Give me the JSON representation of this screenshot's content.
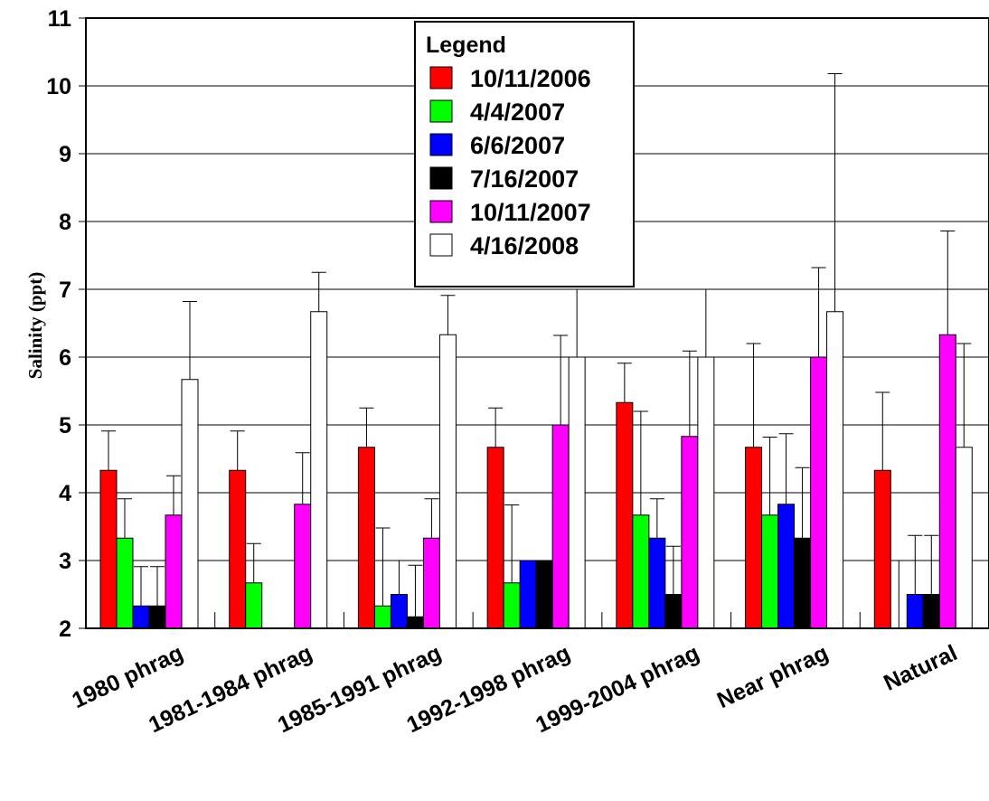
{
  "chart_data": {
    "type": "bar",
    "ylabel": "Salinity (ppt)",
    "xlabel": "",
    "ylim": [
      2,
      11
    ],
    "yticks": [
      "2",
      "3",
      "4",
      "5",
      "6",
      "7",
      "8",
      "9",
      "10",
      "11"
    ],
    "grid": true,
    "legend_title": "Legend",
    "legend_position": "top-center",
    "categories": [
      "1980 phrag",
      "1981-1984 phrag",
      "1985-1991 phrag",
      "1992-1998 phrag",
      "1999-2004 phrag",
      "Near phrag",
      "Natural"
    ],
    "series": [
      {
        "name": "10/11/2006",
        "color": "#ff0000",
        "values": [
          4.33,
          4.33,
          4.67,
          4.67,
          5.33,
          4.67,
          4.33
        ],
        "errors": [
          0.58,
          0.58,
          0.58,
          0.58,
          0.58,
          1.53,
          1.15
        ]
      },
      {
        "name": "4/4/2007",
        "color": "#00ff00",
        "values": [
          3.33,
          2.67,
          2.33,
          2.67,
          3.67,
          3.67,
          2.0
        ],
        "errors": [
          0.58,
          0.58,
          1.15,
          1.15,
          1.53,
          1.15,
          1.0
        ]
      },
      {
        "name": "6/6/2007",
        "color": "#0000ff",
        "values": [
          2.33,
          null,
          2.5,
          3.0,
          3.33,
          3.83,
          2.5
        ],
        "errors": [
          0.58,
          null,
          0.5,
          0,
          0.58,
          1.04,
          0.87
        ]
      },
      {
        "name": "7/16/2007",
        "color": "#000000",
        "values": [
          2.33,
          null,
          2.17,
          3.0,
          2.5,
          3.33,
          2.5
        ],
        "errors": [
          0.58,
          null,
          0.76,
          0,
          0.71,
          1.04,
          0.87
        ]
      },
      {
        "name": "10/11/2007",
        "color": "#ff00ff",
        "values": [
          3.67,
          3.83,
          3.33,
          5.0,
          4.83,
          6.0,
          6.33
        ],
        "errors": [
          0.58,
          0.76,
          0.58,
          1.32,
          1.26,
          1.32,
          1.53
        ]
      },
      {
        "name": "4/16/2008",
        "color": "#ffffff",
        "values": [
          5.67,
          6.67,
          6.33,
          6.0,
          6.0,
          6.67,
          4.67
        ],
        "errors": [
          1.15,
          0.58,
          0.58,
          1.0,
          1.0,
          3.51,
          1.53
        ]
      }
    ]
  }
}
